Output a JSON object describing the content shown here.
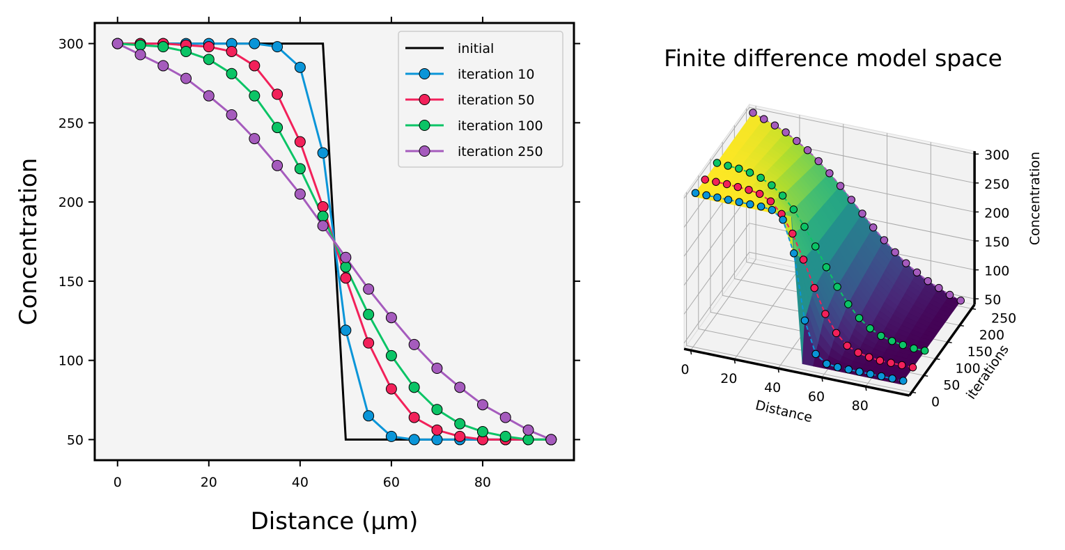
{
  "chart_data": [
    {
      "type": "line",
      "title": "",
      "xlabel": "Distance (μm)",
      "ylabel": "Concentration",
      "xlim": [
        -5,
        100
      ],
      "ylim": [
        37,
        313
      ],
      "xticks": [
        0,
        20,
        40,
        60,
        80
      ],
      "yticks": [
        50,
        100,
        150,
        200,
        250,
        300
      ],
      "grid": false,
      "legend_position": "top-right",
      "background": "#f4f4f4",
      "initial": {
        "name": "initial",
        "color": "#000000",
        "x": [
          0,
          45,
          50,
          95
        ],
        "y": [
          300,
          300,
          50,
          50
        ]
      },
      "x": [
        0,
        5,
        10,
        15,
        20,
        25,
        30,
        35,
        40,
        45,
        50,
        55,
        60,
        65,
        70,
        75,
        80,
        85,
        90,
        95
      ],
      "series": [
        {
          "name": "iteration 10",
          "color": "#0a95d8",
          "values": [
            300,
            300,
            300,
            300,
            300,
            300,
            300,
            298,
            285,
            231,
            119,
            65,
            52,
            50,
            50,
            50,
            50,
            50,
            50,
            50
          ]
        },
        {
          "name": "iteration 50",
          "color": "#f2215a",
          "values": [
            300,
            300,
            300,
            299,
            298,
            295,
            286,
            268,
            238,
            197,
            152,
            111,
            82,
            64,
            56,
            52,
            50,
            50,
            50,
            50
          ]
        },
        {
          "name": "iteration 100",
          "color": "#0bc466",
          "values": [
            300,
            299,
            298,
            295,
            290,
            281,
            267,
            247,
            221,
            191,
            159,
            129,
            103,
            83,
            69,
            60,
            55,
            52,
            50,
            50
          ]
        },
        {
          "name": "iteration 250",
          "color": "#a55bbd",
          "values": [
            300,
            293,
            286,
            278,
            267,
            255,
            240,
            223,
            205,
            185,
            165,
            145,
            127,
            110,
            95,
            83,
            72,
            64,
            56,
            50
          ]
        }
      ]
    },
    {
      "type": "surface",
      "title": "Finite difference model space",
      "xlabel": "Distance",
      "ylabel": "iterations",
      "zlabel": "Concentration",
      "xticks": [
        0,
        20,
        40,
        60,
        80
      ],
      "yticks": [
        0,
        50,
        100,
        150,
        200,
        250
      ],
      "zticks": [
        50,
        100,
        150,
        200,
        250,
        300
      ],
      "xlim": [
        0,
        95
      ],
      "ylim": [
        0,
        260
      ],
      "zlim": [
        50,
        300
      ],
      "colormap": "viridis",
      "grid": true
    }
  ]
}
